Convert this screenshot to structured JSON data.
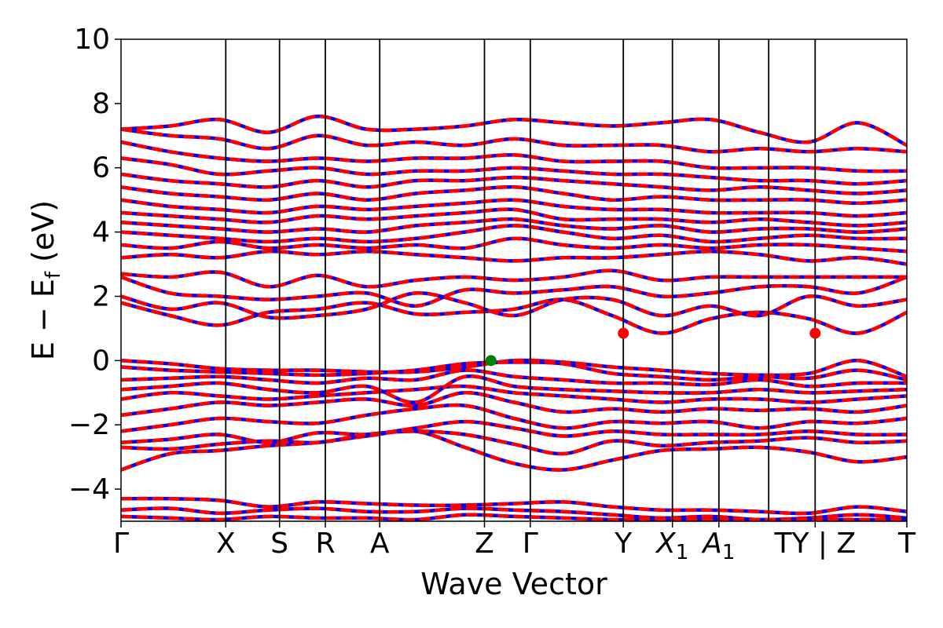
{
  "chart_data": {
    "type": "line",
    "title": "",
    "xlabel": "Wave Vector",
    "ylabel_main": "E − E",
    "ylabel_sub": "f",
    "ylabel_unit": " (eV)",
    "ylim": [
      -5,
      10
    ],
    "yticks": [
      10,
      8,
      6,
      4,
      2,
      0,
      -2,
      -4
    ],
    "ytick_labels": [
      "10",
      "8",
      "6",
      "4",
      "2",
      "0",
      "−2",
      "−4"
    ],
    "grid": false,
    "kpath": [
      {
        "label": "Γ",
        "sub": "",
        "x": 0.0
      },
      {
        "label": "X",
        "sub": "",
        "x": 0.1333
      },
      {
        "label": "S",
        "sub": "",
        "x": 0.2017
      },
      {
        "label": "R",
        "sub": "",
        "x": 0.26
      },
      {
        "label": "A",
        "sub": "",
        "x": 0.3292
      },
      {
        "label": "Z",
        "sub": "",
        "x": 0.4625
      },
      {
        "label": "Γ",
        "sub": "",
        "x": 0.5208
      },
      {
        "label": "Y",
        "sub": "",
        "x": 0.6392
      },
      {
        "label": "X",
        "sub": "1",
        "x": 0.7017
      },
      {
        "label": "A",
        "sub": "1",
        "x": 0.7608
      },
      {
        "label": "TY | Z",
        "sub": "",
        "x": 0.8833
      },
      {
        "label": "T",
        "sub": "",
        "x": 1.0
      }
    ],
    "extra_vlines": [
      0.8242
    ],
    "markers": [
      {
        "x": 0.4708,
        "y": 0.0,
        "color": "#008000",
        "type": "VBM"
      },
      {
        "x": 0.6392,
        "y": 0.85,
        "color": "#ff0000",
        "type": "CBM"
      },
      {
        "x": 0.8833,
        "y": 0.85,
        "color": "#ff0000",
        "type": "CBM"
      }
    ],
    "series": [
      {
        "color": "#0000ff",
        "style": "solid"
      },
      {
        "color": "#ff0000",
        "style": "dashed"
      }
    ],
    "bands": [
      [
        -4.3,
        -4.3,
        -4.35,
        -4.55,
        -4.4,
        -4.45,
        -4.5,
        -4.5,
        -4.45,
        -4.4,
        -4.55,
        -4.65,
        -4.65,
        -4.7,
        -4.75,
        -4.55,
        -4.7
      ],
      [
        -4.65,
        -4.6,
        -4.75,
        -4.65,
        -4.6,
        -4.7,
        -4.7,
        -4.6,
        -4.65,
        -4.7,
        -4.8,
        -4.9,
        -4.85,
        -4.95,
        -4.9,
        -4.8,
        -4.9
      ],
      [
        -4.85,
        -4.9,
        -4.95,
        -4.85,
        -4.9,
        -4.9,
        -4.95,
        -4.8,
        -4.85,
        -4.9,
        -4.95,
        -4.95,
        -4.95,
        -4.95,
        -4.95,
        -4.95,
        -4.95
      ],
      [
        -3.4,
        -2.9,
        -2.8,
        -2.65,
        -2.55,
        -2.35,
        -2.2,
        -2.7,
        -3.2,
        -3.4,
        -3.1,
        -2.8,
        -2.75,
        -2.7,
        -2.85,
        -3.15,
        -3.0
      ],
      [
        -2.7,
        -2.75,
        -2.6,
        -2.5,
        -2.55,
        -2.3,
        -2.2,
        -2.3,
        -2.6,
        -2.9,
        -2.5,
        -2.65,
        -2.55,
        -2.5,
        -2.4,
        -2.55,
        -2.5
      ],
      [
        -2.55,
        -2.45,
        -2.3,
        -2.55,
        -2.25,
        -2.3,
        -2.1,
        -1.9,
        -2.1,
        -2.35,
        -2.2,
        -2.3,
        -2.3,
        -2.3,
        -2.2,
        -2.3,
        -2.3
      ],
      [
        -2.2,
        -2.0,
        -1.8,
        -1.9,
        -1.95,
        -1.7,
        -1.5,
        -1.4,
        -1.8,
        -2.1,
        -1.9,
        -1.95,
        -1.9,
        -2.1,
        -1.9,
        -1.95,
        -1.8
      ],
      [
        -1.7,
        -1.5,
        -1.3,
        -1.4,
        -1.3,
        -1.2,
        -1.4,
        -1.0,
        -1.3,
        -1.6,
        -1.5,
        -1.6,
        -1.5,
        -1.55,
        -1.5,
        -1.6,
        -1.4
      ],
      [
        -1.2,
        -1.0,
        -1.1,
        -1.2,
        -1.1,
        -1.0,
        -0.9,
        -0.8,
        -1.0,
        -1.1,
        -1.2,
        -1.3,
        -1.2,
        -1.2,
        -1.3,
        -1.2,
        -1.1
      ],
      [
        -0.9,
        -0.8,
        -0.7,
        -0.9,
        -1.0,
        -0.8,
        -1.3,
        -0.5,
        -0.8,
        -0.9,
        -0.95,
        -1.0,
        -1.0,
        -0.9,
        -1.0,
        -0.95,
        -0.9
      ],
      [
        -0.6,
        -0.55,
        -0.5,
        -0.6,
        -0.7,
        -0.55,
        -0.6,
        -0.3,
        -0.5,
        -0.6,
        -0.7,
        -0.7,
        -0.75,
        -0.6,
        -0.8,
        -0.7,
        -0.7
      ],
      [
        -0.2,
        -0.3,
        -0.35,
        -0.4,
        -0.45,
        -0.4,
        -0.3,
        -0.1,
        -0.05,
        -0.1,
        -0.4,
        -0.5,
        -0.6,
        -0.5,
        -0.55,
        -0.3,
        -0.6
      ],
      [
        0.0,
        -0.1,
        -0.25,
        -0.3,
        -0.3,
        -0.35,
        -0.35,
        -0.2,
        0.0,
        -0.05,
        -0.2,
        -0.3,
        -0.4,
        -0.45,
        -0.4,
        0.0,
        -0.5
      ],
      [
        1.8,
        1.4,
        1.1,
        1.5,
        1.6,
        1.8,
        1.45,
        1.5,
        1.6,
        1.9,
        1.4,
        0.85,
        1.3,
        1.5,
        1.3,
        0.85,
        1.5
      ],
      [
        2.0,
        1.6,
        1.8,
        1.35,
        1.4,
        1.6,
        2.1,
        1.8,
        1.4,
        1.9,
        1.9,
        1.4,
        1.7,
        1.4,
        2.0,
        1.7,
        1.9
      ],
      [
        2.6,
        2.1,
        2.0,
        1.9,
        2.0,
        2.1,
        1.7,
        2.2,
        2.1,
        2.2,
        2.3,
        2.0,
        2.1,
        2.3,
        2.3,
        2.1,
        2.6
      ],
      [
        2.7,
        2.6,
        2.75,
        2.3,
        2.65,
        2.3,
        2.5,
        2.6,
        2.5,
        2.6,
        2.8,
        2.5,
        2.6,
        2.6,
        2.6,
        2.6,
        2.6
      ],
      [
        3.2,
        3.3,
        3.2,
        3.4,
        3.3,
        3.4,
        3.3,
        3.2,
        3.1,
        3.2,
        3.2,
        3.3,
        3.4,
        3.3,
        3.1,
        3.2,
        3.0
      ],
      [
        3.6,
        3.5,
        3.7,
        3.5,
        3.6,
        3.5,
        3.6,
        3.5,
        3.8,
        3.6,
        3.5,
        3.6,
        3.5,
        3.6,
        3.6,
        3.5,
        3.4
      ],
      [
        4.0,
        3.9,
        3.8,
        3.7,
        3.8,
        3.7,
        3.8,
        4.0,
        4.2,
        4.0,
        3.8,
        3.9,
        3.7,
        3.8,
        3.9,
        3.8,
        3.8
      ],
      [
        4.3,
        4.2,
        4.1,
        4.0,
        4.1,
        4.0,
        4.2,
        4.3,
        4.4,
        4.2,
        4.1,
        4.2,
        4.0,
        4.1,
        4.1,
        4.0,
        4.1
      ],
      [
        4.6,
        4.5,
        4.4,
        4.3,
        4.5,
        4.4,
        4.5,
        4.6,
        4.7,
        4.4,
        4.4,
        4.4,
        4.3,
        4.4,
        4.3,
        4.2,
        4.3
      ],
      [
        5.0,
        4.8,
        4.7,
        4.6,
        4.8,
        4.7,
        4.8,
        4.9,
        5.0,
        4.8,
        4.7,
        4.7,
        4.6,
        4.6,
        4.6,
        4.5,
        4.6
      ],
      [
        5.4,
        5.2,
        5.1,
        5.0,
        5.2,
        5.0,
        5.2,
        5.3,
        5.4,
        5.2,
        5.0,
        5.1,
        5.0,
        5.0,
        5.0,
        4.9,
        5.0
      ],
      [
        5.8,
        5.6,
        5.5,
        5.4,
        5.6,
        5.4,
        5.6,
        5.6,
        5.7,
        5.6,
        5.5,
        5.4,
        5.3,
        5.4,
        5.3,
        5.2,
        5.3
      ],
      [
        6.3,
        6.1,
        5.8,
        5.9,
        6.0,
        5.8,
        5.9,
        5.9,
        6.0,
        5.9,
        5.8,
        5.8,
        5.7,
        5.6,
        5.6,
        5.5,
        5.6
      ],
      [
        6.8,
        6.5,
        6.3,
        6.2,
        6.3,
        6.2,
        6.3,
        6.3,
        6.4,
        6.2,
        6.2,
        6.2,
        6.0,
        6.0,
        6.0,
        5.9,
        5.9
      ],
      [
        7.2,
        7.0,
        6.9,
        6.6,
        7.0,
        6.7,
        6.8,
        6.7,
        6.9,
        6.7,
        6.7,
        6.7,
        6.5,
        6.6,
        6.5,
        6.6,
        6.5
      ],
      [
        7.2,
        7.3,
        7.5,
        7.1,
        7.6,
        7.2,
        7.2,
        7.3,
        7.5,
        7.4,
        7.3,
        7.4,
        7.5,
        7.1,
        6.8,
        7.4,
        6.7
      ]
    ]
  }
}
